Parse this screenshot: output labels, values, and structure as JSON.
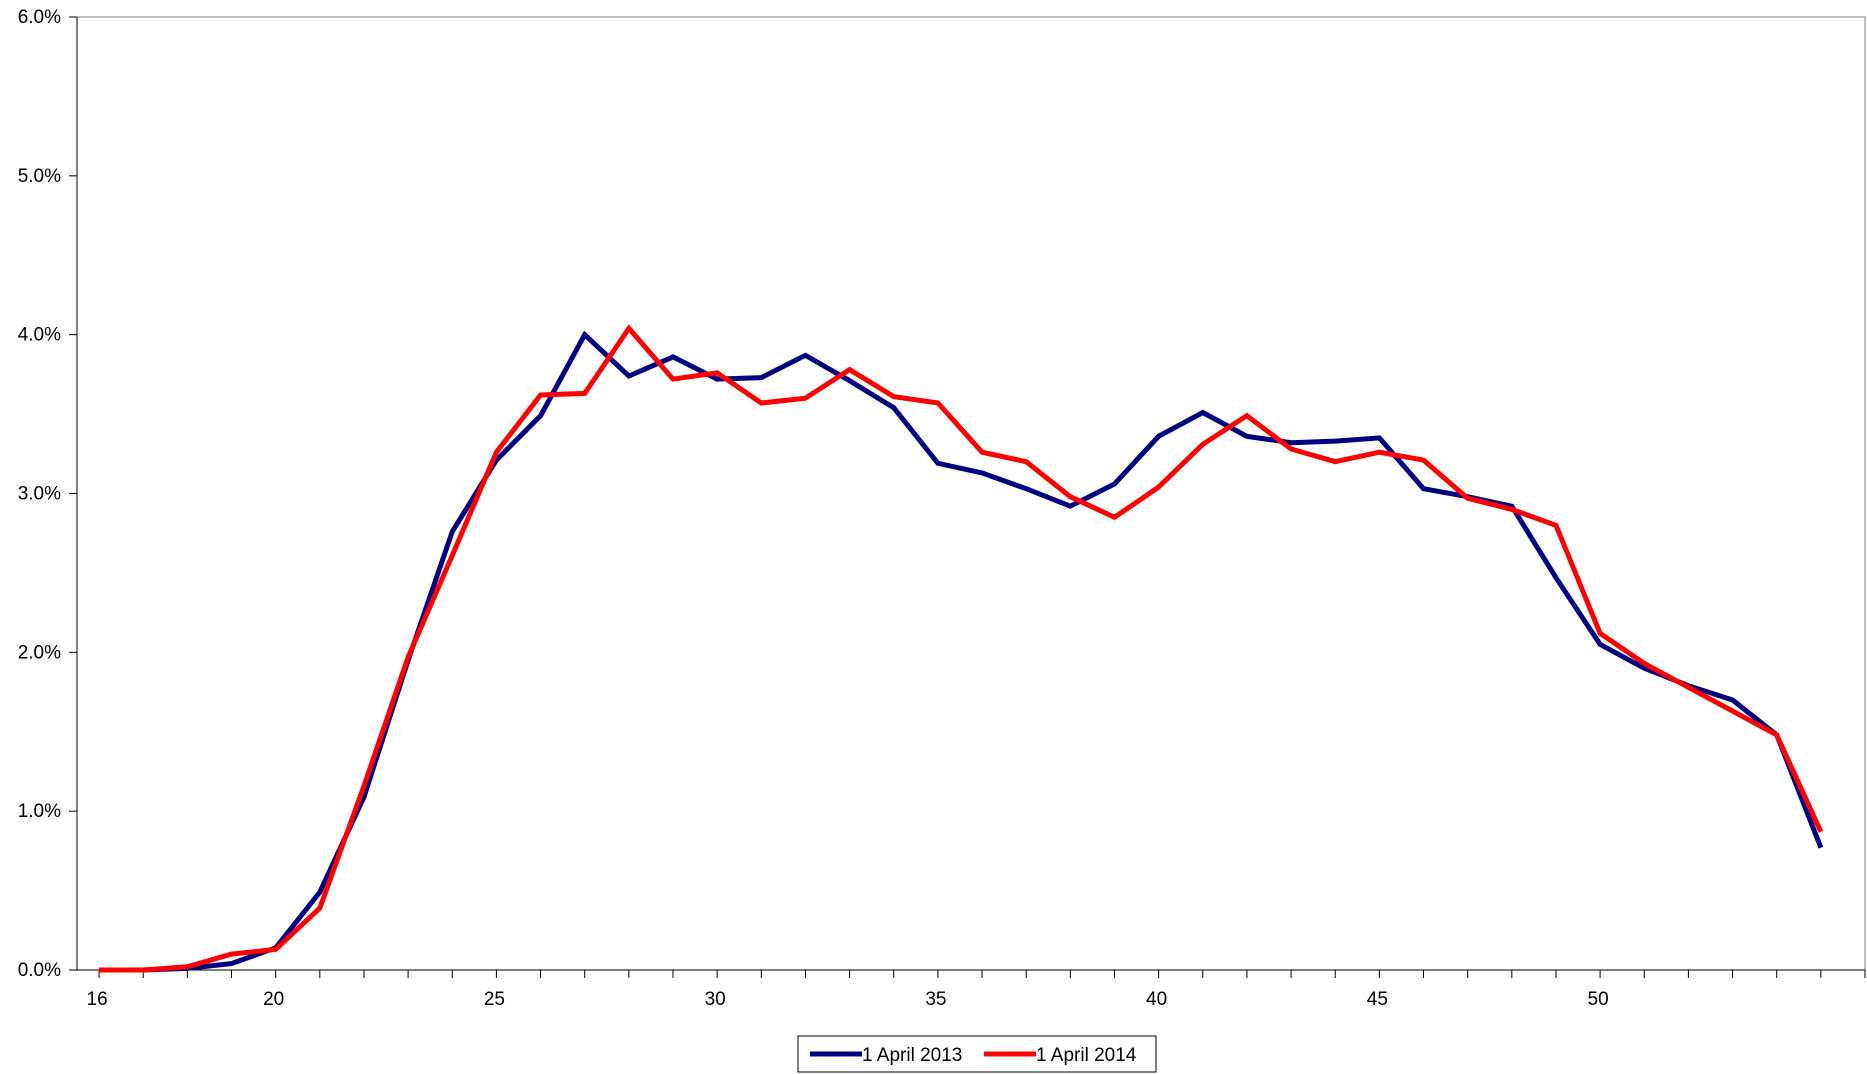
{
  "chart_data": {
    "type": "line",
    "title": "",
    "xlabel": "",
    "ylabel": "",
    "x": [
      16,
      17,
      18,
      19,
      20,
      21,
      22,
      23,
      24,
      25,
      26,
      27,
      28,
      29,
      30,
      31,
      32,
      33,
      34,
      35,
      36,
      37,
      38,
      39,
      40,
      41,
      42,
      43,
      44,
      45,
      46,
      47,
      48,
      49,
      50,
      51,
      52,
      53,
      54,
      55,
      56
    ],
    "xlim": [
      15.5,
      56
    ],
    "ylim": [
      0,
      0.06
    ],
    "x_ticks": [
      16,
      20,
      25,
      30,
      35,
      40,
      45,
      50
    ],
    "y_ticks": [
      0,
      0.01,
      0.02,
      0.03,
      0.04,
      0.05,
      0.06
    ],
    "y_tick_labels": [
      "0.0%",
      "1.0%",
      "2.0%",
      "3.0%",
      "4.0%",
      "5.0%",
      "6.0%"
    ],
    "grid": false,
    "legend_position": "bottom",
    "series": [
      {
        "name": "1 April 2013",
        "color": "#000080",
        "values": [
          0.0,
          0.0,
          0.0001,
          0.0004,
          0.0014,
          0.0049,
          0.0109,
          0.0195,
          0.0276,
          0.0321,
          0.0349,
          0.04,
          0.0374,
          0.0386,
          0.0372,
          0.0373,
          0.0387,
          0.0371,
          0.0354,
          0.0319,
          0.0313,
          0.0303,
          0.0292,
          0.0306,
          0.0336,
          0.0351,
          0.0336,
          0.0332,
          0.0333,
          0.0335,
          0.0303,
          0.0298,
          0.0292,
          0.0247,
          0.0205,
          0.019,
          0.0179,
          0.017,
          0.0148,
          0.0077,
          null
        ]
      },
      {
        "name": "1 April 2014",
        "color": "#ff0000",
        "values": [
          0.0,
          0.0,
          0.0002,
          0.001,
          0.0013,
          0.0039,
          0.0116,
          0.0197,
          0.0261,
          0.0326,
          0.0362,
          0.0363,
          0.0404,
          0.0372,
          0.0376,
          0.0357,
          0.036,
          0.0378,
          0.0361,
          0.0357,
          0.0326,
          0.032,
          0.0298,
          0.0285,
          0.0304,
          0.0331,
          0.0349,
          0.0328,
          0.032,
          0.0326,
          0.0321,
          0.0297,
          0.029,
          0.028,
          0.0212,
          0.0193,
          0.0178,
          0.0163,
          0.0148,
          0.0087,
          null
        ]
      }
    ]
  }
}
